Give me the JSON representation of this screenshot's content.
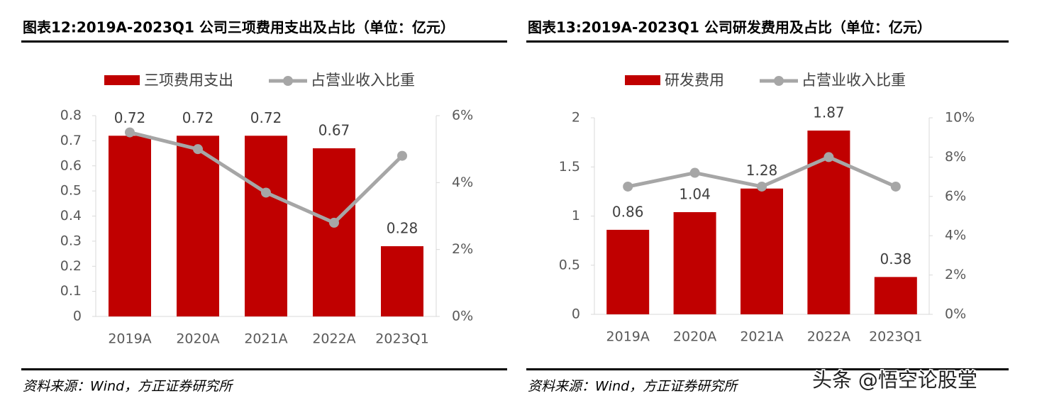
{
  "chart_data": [
    {
      "type": "combo",
      "title": "图表12:2019A-2023Q1 公司三项费用支出及占比（单位：亿元）",
      "categories": [
        "2019A",
        "2020A",
        "2021A",
        "2022A",
        "2023Q1"
      ],
      "series": [
        {
          "name": "三项费用支出",
          "type": "bar",
          "color": "#c00000",
          "values": [
            0.72,
            0.72,
            0.72,
            0.67,
            0.28
          ]
        },
        {
          "name": "占营业收入比重",
          "type": "line",
          "axis": "y2",
          "color": "#a6a6a6",
          "values": [
            5.5,
            5.0,
            3.7,
            2.8,
            4.8
          ]
        }
      ],
      "ylim": [
        0,
        0.8
      ],
      "yticks": [
        0,
        0.1,
        0.2,
        0.3,
        0.4,
        0.5,
        0.6,
        0.7,
        0.8
      ],
      "y2lim": [
        0,
        6
      ],
      "y2ticks": [
        {
          "value": 0,
          "label": "0%"
        },
        {
          "value": 2,
          "label": "2%"
        },
        {
          "value": 4,
          "label": "4%"
        },
        {
          "value": 6,
          "label": "6%"
        }
      ],
      "legend": "top",
      "source": "资料来源：Wind，方正证券研究所"
    },
    {
      "type": "combo",
      "title": "图表13:2019A-2023Q1 公司研发费用及占比（单位：亿元）",
      "categories": [
        "2019A",
        "2020A",
        "2021A",
        "2022A",
        "2023Q1"
      ],
      "series": [
        {
          "name": "研发费用",
          "type": "bar",
          "color": "#c00000",
          "values": [
            0.86,
            1.04,
            1.28,
            1.87,
            0.38
          ]
        },
        {
          "name": "占营业收入比重",
          "type": "line",
          "axis": "y2",
          "color": "#a6a6a6",
          "values": [
            6.5,
            7.2,
            6.5,
            8.0,
            6.5
          ]
        }
      ],
      "ylim": [
        0,
        2
      ],
      "yticks": [
        0,
        0.5,
        1,
        1.5,
        2
      ],
      "y2lim": [
        0,
        10
      ],
      "y2ticks": [
        {
          "value": 0,
          "label": "0%"
        },
        {
          "value": 2,
          "label": "2%"
        },
        {
          "value": 4,
          "label": "4%"
        },
        {
          "value": 6,
          "label": "6%"
        },
        {
          "value": 8,
          "label": "8%"
        },
        {
          "value": 10,
          "label": "10%"
        }
      ],
      "legend": "top",
      "source": "资料来源：Wind，方正证券研究所"
    }
  ],
  "watermark": "头条 @悟空论股堂"
}
